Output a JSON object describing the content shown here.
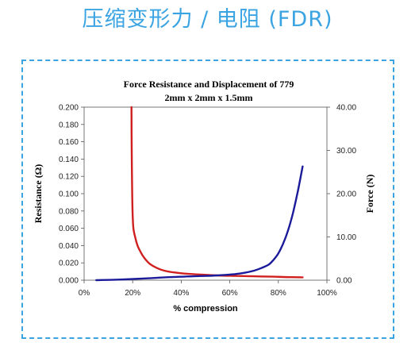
{
  "page": {
    "heading": "压缩变形力 / 电阻 (FDR)"
  },
  "colors": {
    "heading": "#3aa3e2",
    "border": "#3aa3e2",
    "resistance": "#d01f1f",
    "force": "#1a1a9a"
  },
  "chart_data": {
    "type": "line",
    "title_line1": "Force Resistance and Displacement  of  779",
    "title_line2": "2mm x 2mm x 1.5mm",
    "xlabel": "% compression",
    "ylabel_left": "Resistance  (Ω)",
    "ylabel_right": "Force  (N)",
    "xlim": [
      0,
      100
    ],
    "ylim_left": [
      0,
      0.2
    ],
    "ylim_right": [
      0,
      40
    ],
    "x_ticks": [
      "0%",
      "20%",
      "40%",
      "60%",
      "80%",
      "100%"
    ],
    "y_left_ticks": [
      "0.000",
      "0.020",
      "0.040",
      "0.060",
      "0.080",
      "0.100",
      "0.120",
      "0.140",
      "0.160",
      "0.180",
      "0.200"
    ],
    "y_right_ticks": [
      "0.00",
      "10.00",
      "20.00",
      "30.00",
      "40.00"
    ],
    "grid": false,
    "legend": "none",
    "series": [
      {
        "axis": "left",
        "color": "#d01f1f",
        "x": [
          19.5,
          19.6,
          19.8,
          20,
          20.3,
          21,
          22,
          23,
          24,
          25,
          27,
          30,
          33,
          37,
          42,
          48,
          55,
          62,
          70,
          78,
          85,
          90
        ],
        "y": [
          0.2,
          0.15,
          0.1,
          0.075,
          0.06,
          0.05,
          0.04,
          0.034,
          0.029,
          0.025,
          0.019,
          0.014,
          0.011,
          0.009,
          0.0075,
          0.0065,
          0.0055,
          0.005,
          0.0045,
          0.004,
          0.0035,
          0.0033
        ]
      },
      {
        "axis": "right",
        "color": "#1a1a9a",
        "x": [
          5,
          15,
          25,
          35,
          45,
          55,
          62,
          66,
          70,
          73,
          76,
          78,
          80,
          82,
          84,
          86,
          88,
          90
        ],
        "y": [
          0,
          0.15,
          0.4,
          0.7,
          0.9,
          1.1,
          1.4,
          1.7,
          2.2,
          2.8,
          3.6,
          4.7,
          6.2,
          8.5,
          11.5,
          15.5,
          20.5,
          26.3
        ]
      }
    ]
  }
}
